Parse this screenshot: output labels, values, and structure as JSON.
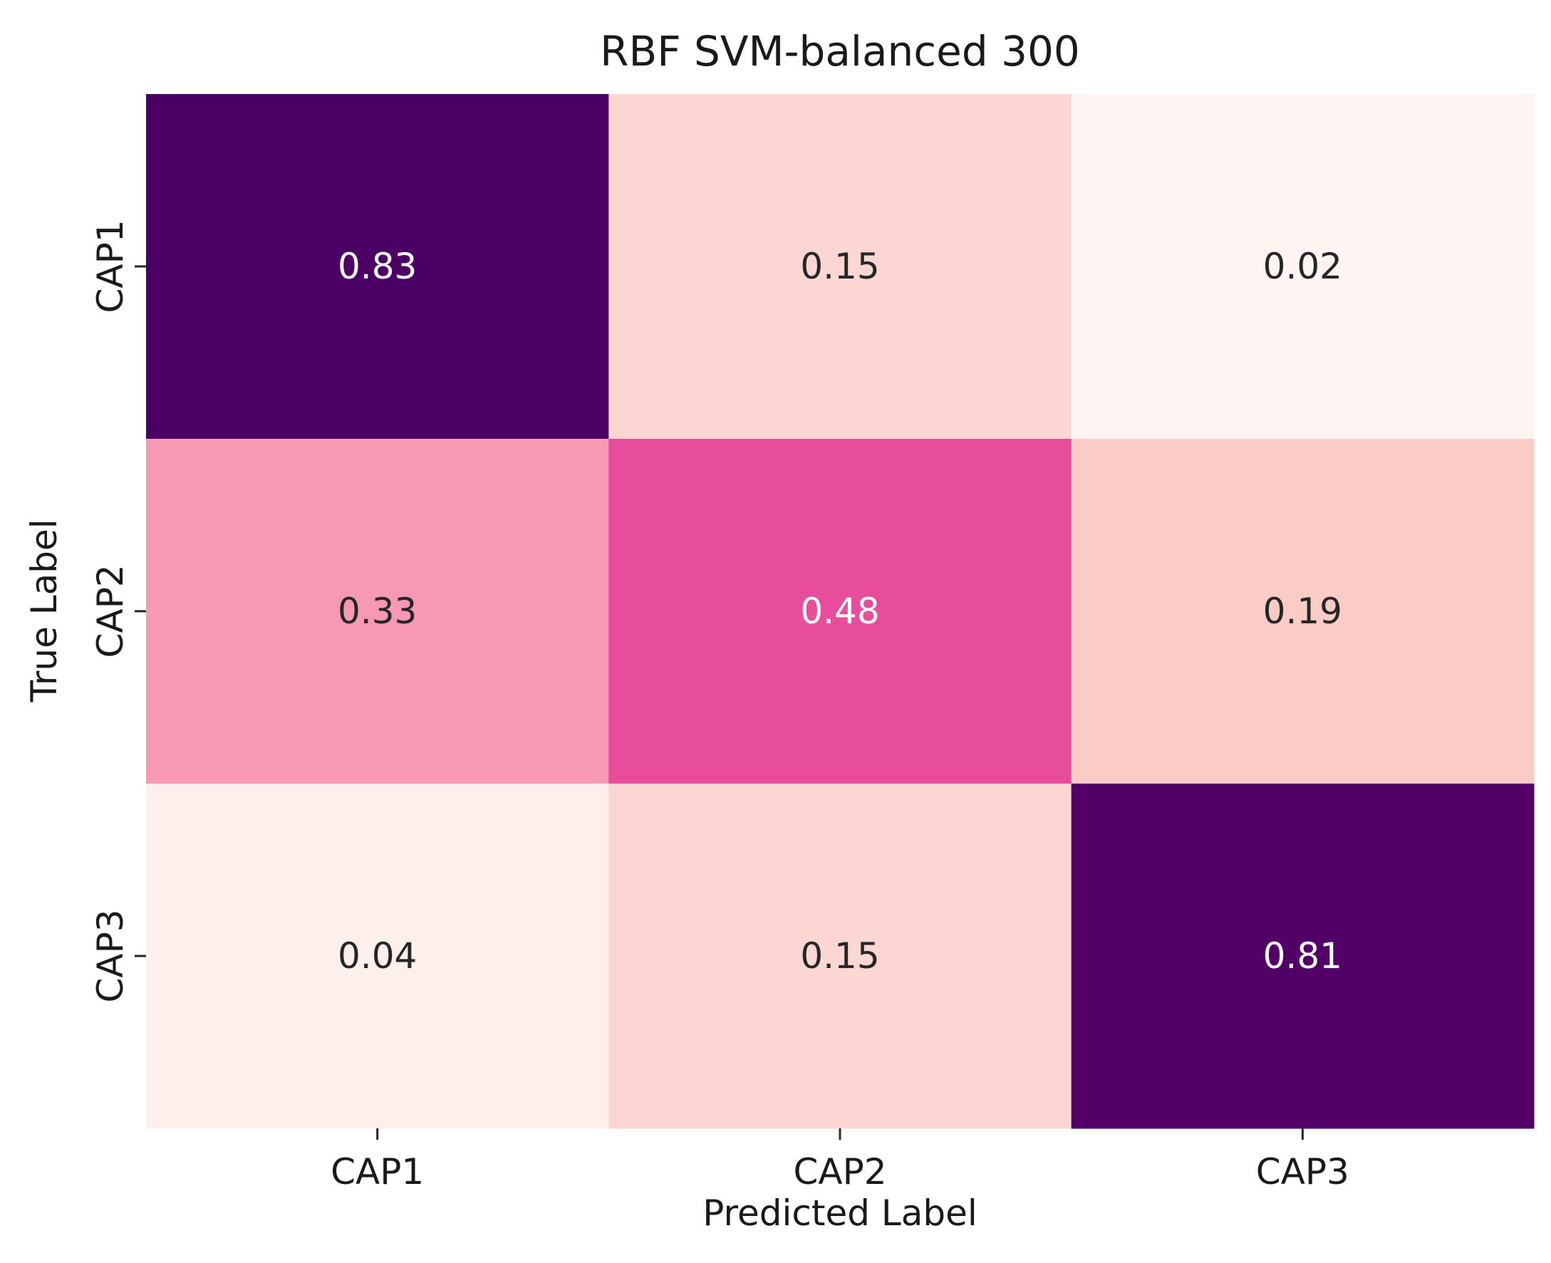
{
  "chart_data": {
    "type": "heatmap",
    "title": "RBF SVM-balanced 300",
    "xlabel": "Predicted Label",
    "ylabel": "True Label",
    "x_categories": [
      "CAP1",
      "CAP2",
      "CAP3"
    ],
    "y_categories": [
      "CAP1",
      "CAP2",
      "CAP3"
    ],
    "values": [
      [
        0.83,
        0.15,
        0.02
      ],
      [
        0.33,
        0.48,
        0.19
      ],
      [
        0.04,
        0.15,
        0.81
      ]
    ],
    "cell_labels": [
      [
        "0.83",
        "0.15",
        "0.02"
      ],
      [
        "0.33",
        "0.48",
        "0.19"
      ],
      [
        "0.04",
        "0.15",
        "0.81"
      ]
    ],
    "colormap": "RdPu",
    "colorbar": false,
    "cell_colors": [
      [
        "#4a0064",
        "#fcd6d2",
        "#fff4f1"
      ],
      [
        "#f799b4",
        "#e74d9a",
        "#fbcbc5"
      ],
      [
        "#fdf0ec",
        "#fcd6d2",
        "#520067"
      ]
    ],
    "text_colors": [
      [
        "#ffffff",
        "#262626",
        "#262626"
      ],
      [
        "#262626",
        "#ffffff",
        "#262626"
      ],
      [
        "#262626",
        "#262626",
        "#ffffff"
      ]
    ]
  }
}
